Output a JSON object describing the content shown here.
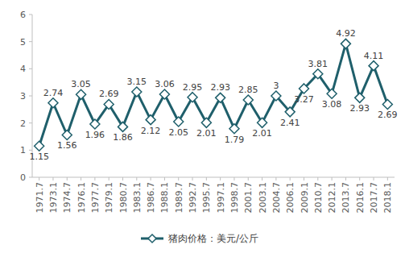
{
  "chart_data": {
    "type": "line",
    "categories": [
      "1971.7",
      "1973.1",
      "1974.7",
      "1976.1",
      "1977.7",
      "1979.1",
      "1980.7",
      "1983.1",
      "1986.7",
      "1988.1",
      "1989.7",
      "1992.7",
      "1995.7",
      "1997.1",
      "1998.7",
      "2001.7",
      "2003.1",
      "2004.7",
      "2006.1",
      "2009.1",
      "2010.7",
      "2012.1",
      "2013.7",
      "2016.1",
      "2017.7",
      "2018.1"
    ],
    "series": [
      {
        "name": "猪肉价格：美元/公斤",
        "color": "#1f5f6b",
        "marker": "diamond",
        "values": [
          1.15,
          2.74,
          1.56,
          3.05,
          1.96,
          2.69,
          1.86,
          3.15,
          2.12,
          3.06,
          2.05,
          2.95,
          2.01,
          2.93,
          1.79,
          2.85,
          2.01,
          3,
          2.41,
          3.27,
          3.81,
          3.08,
          4.92,
          2.93,
          4.11,
          2.69
        ]
      }
    ],
    "ylim": [
      0,
      6
    ],
    "yticks": [
      0,
      1,
      2,
      3,
      4,
      5,
      6
    ],
    "grid": false,
    "data_labels": true,
    "legend": "bottom"
  }
}
